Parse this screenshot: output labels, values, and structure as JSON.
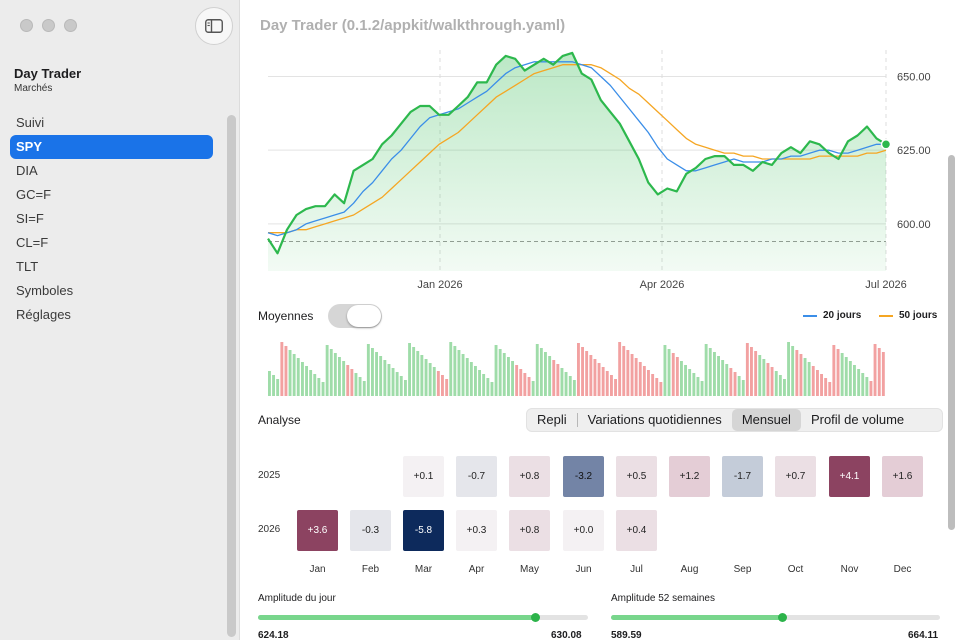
{
  "window": {
    "title": "Day Trader (0.1.2/appkit/walkthrough.yaml)"
  },
  "sidebar": {
    "app_name": "Day Trader",
    "app_subtitle": "Marchés",
    "items": [
      {
        "label": "Suivi",
        "active": false
      },
      {
        "label": "SPY",
        "active": true
      },
      {
        "label": "DIA",
        "active": false
      },
      {
        "label": "GC=F",
        "active": false
      },
      {
        "label": "SI=F",
        "active": false
      },
      {
        "label": "CL=F",
        "active": false
      },
      {
        "label": "TLT",
        "active": false
      },
      {
        "label": "Symboles",
        "active": false
      },
      {
        "label": "Réglages",
        "active": false
      }
    ]
  },
  "chart_data": {
    "type": "line",
    "x_ticks": [
      "Jan 2026",
      "Apr 2026",
      "Jul 2026"
    ],
    "y_ticks": [
      "600.00",
      "625.00",
      "650.00"
    ],
    "ylim": [
      584,
      659
    ],
    "reference_line": 594,
    "series": [
      {
        "name": "Price",
        "color": "#2db84d",
        "values": [
          595,
          590,
          598,
          603,
          605,
          606,
          606,
          610,
          607,
          618,
          620,
          622,
          627,
          630,
          634,
          638,
          640,
          640,
          637,
          637,
          640,
          643,
          648,
          648,
          654,
          657,
          656,
          652,
          654,
          656,
          654,
          657,
          658,
          651,
          649,
          642,
          638,
          634,
          628,
          622,
          614,
          610,
          612,
          611,
          617,
          619,
          622,
          623,
          623,
          620,
          620,
          618,
          621,
          620,
          624,
          626,
          624,
          628,
          627,
          624,
          622,
          628,
          630,
          633,
          629,
          627
        ]
      },
      {
        "name": "20 jours",
        "color": "#3b8ee8",
        "values": [
          597,
          596,
          597,
          598,
          600,
          601,
          602,
          603,
          604,
          607,
          611,
          614,
          618,
          622,
          625,
          629,
          633,
          636,
          637,
          638,
          639,
          641,
          643,
          645,
          648,
          651,
          653,
          654,
          655,
          655,
          655,
          655,
          655,
          654,
          653,
          650,
          647,
          643,
          639,
          635,
          631,
          626,
          622,
          620,
          618,
          618,
          619,
          620,
          621,
          622,
          621,
          621,
          621,
          622,
          622,
          623,
          623,
          624,
          625,
          625,
          624,
          624,
          625,
          626,
          627,
          627
        ]
      },
      {
        "name": "50 jours",
        "color": "#f5a623",
        "values": [
          597,
          597,
          597,
          598,
          598,
          599,
          600,
          601,
          602,
          603,
          605,
          607,
          609,
          612,
          615,
          618,
          621,
          624,
          627,
          629,
          631,
          634,
          637,
          640,
          643,
          645,
          647,
          649,
          651,
          652,
          653,
          654,
          654,
          654,
          654,
          653,
          651,
          649,
          646,
          644,
          641,
          638,
          635,
          632,
          629,
          627,
          626,
          625,
          624,
          624,
          623,
          623,
          622,
          622,
          622,
          622,
          622,
          622,
          623,
          623,
          623,
          623,
          623,
          624,
          624,
          625
        ]
      }
    ]
  },
  "moyennes": {
    "label": "Moyennes",
    "enabled": false
  },
  "legend": [
    {
      "label": "20 jours",
      "color": "#3b8ee8"
    },
    {
      "label": "50 jours",
      "color": "#f5a623"
    }
  ],
  "analyse": {
    "label": "Analyse",
    "tabs": [
      "Repli",
      "Variations quotidiennes",
      "Mensuel",
      "Profil de volume"
    ],
    "active_tab": "Mensuel"
  },
  "heatmap": {
    "months": [
      "Jan",
      "Feb",
      "Mar",
      "Apr",
      "May",
      "Jun",
      "Jul",
      "Aug",
      "Sep",
      "Oct",
      "Nov",
      "Dec"
    ],
    "rows": [
      {
        "year": "2025",
        "values": [
          null,
          null,
          "+0.1",
          "-0.7",
          "+0.8",
          "-3.2",
          "+0.5",
          "+1.2",
          "-1.7",
          "+0.7",
          "+4.1",
          "+1.6"
        ]
      },
      {
        "year": "2026",
        "values": [
          "+3.6",
          "-0.3",
          "-5.8",
          "+0.3",
          "+0.8",
          "+0.0",
          "+0.4",
          null,
          null,
          null,
          null,
          null
        ]
      }
    ]
  },
  "ranges": {
    "day": {
      "title": "Amplitude du jour",
      "low": "624.18",
      "high": "630.08",
      "position": 0.84
    },
    "week52": {
      "title": "Amplitude 52 semaines",
      "low": "589.59",
      "high": "664.11",
      "position": 0.52
    }
  }
}
